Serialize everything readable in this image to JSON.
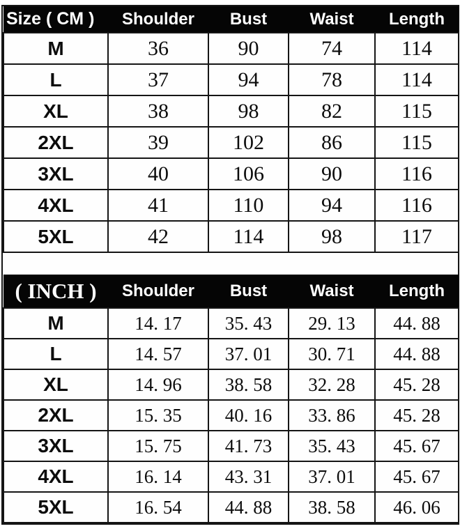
{
  "page": {
    "background": "#ffffff",
    "header_bg": "#050505",
    "header_text_color": "#ffffff",
    "border_color": "#151515"
  },
  "cm_table": {
    "header": [
      "Size ( CM )",
      "Shoulder",
      "Bust",
      "Waist",
      "Length"
    ],
    "rows": [
      [
        "M",
        "36",
        "90",
        "74",
        "114"
      ],
      [
        "L",
        "37",
        "94",
        "78",
        "114"
      ],
      [
        "XL",
        "38",
        "98",
        "82",
        "115"
      ],
      [
        "2XL",
        "39",
        "102",
        "86",
        "115"
      ],
      [
        "3XL",
        "40",
        "106",
        "90",
        "116"
      ],
      [
        "4XL",
        "41",
        "110",
        "94",
        "116"
      ],
      [
        "5XL",
        "42",
        "114",
        "98",
        "117"
      ]
    ]
  },
  "inch_table": {
    "header": [
      "( INCH )",
      "Shoulder",
      "Bust",
      "Waist",
      "Length"
    ],
    "rows": [
      [
        "M",
        "14. 17",
        "35. 43",
        "29. 13",
        "44. 88"
      ],
      [
        "L",
        "14. 57",
        "37. 01",
        "30. 71",
        "44. 88"
      ],
      [
        "XL",
        "14. 96",
        "38. 58",
        "32. 28",
        "45. 28"
      ],
      [
        "2XL",
        "15. 35",
        "40. 16",
        "33. 86",
        "45. 28"
      ],
      [
        "3XL",
        "15. 75",
        "41. 73",
        "35. 43",
        "45. 67"
      ],
      [
        "4XL",
        "16. 14",
        "43. 31",
        "37. 01",
        "45. 67"
      ],
      [
        "5XL",
        "16. 54",
        "44. 88",
        "38. 58",
        "46. 06"
      ]
    ]
  },
  "chart_data": [
    {
      "type": "table",
      "title": "Size ( CM )",
      "unit": "cm",
      "columns": [
        "Size",
        "Shoulder",
        "Bust",
        "Waist",
        "Length"
      ],
      "rows": [
        {
          "size": "M",
          "shoulder": 36,
          "bust": 90,
          "waist": 74,
          "length": 114
        },
        {
          "size": "L",
          "shoulder": 37,
          "bust": 94,
          "waist": 78,
          "length": 114
        },
        {
          "size": "XL",
          "shoulder": 38,
          "bust": 98,
          "waist": 82,
          "length": 115
        },
        {
          "size": "2XL",
          "shoulder": 39,
          "bust": 102,
          "waist": 86,
          "length": 115
        },
        {
          "size": "3XL",
          "shoulder": 40,
          "bust": 106,
          "waist": 90,
          "length": 116
        },
        {
          "size": "4XL",
          "shoulder": 41,
          "bust": 110,
          "waist": 94,
          "length": 116
        },
        {
          "size": "5XL",
          "shoulder": 42,
          "bust": 114,
          "waist": 98,
          "length": 117
        }
      ]
    },
    {
      "type": "table",
      "title": "( INCH )",
      "unit": "inch",
      "columns": [
        "Size",
        "Shoulder",
        "Bust",
        "Waist",
        "Length"
      ],
      "rows": [
        {
          "size": "M",
          "shoulder": 14.17,
          "bust": 35.43,
          "waist": 29.13,
          "length": 44.88
        },
        {
          "size": "L",
          "shoulder": 14.57,
          "bust": 37.01,
          "waist": 30.71,
          "length": 44.88
        },
        {
          "size": "XL",
          "shoulder": 14.96,
          "bust": 38.58,
          "waist": 32.28,
          "length": 45.28
        },
        {
          "size": "2XL",
          "shoulder": 15.35,
          "bust": 40.16,
          "waist": 33.86,
          "length": 45.28
        },
        {
          "size": "3XL",
          "shoulder": 15.75,
          "bust": 41.73,
          "waist": 35.43,
          "length": 45.67
        },
        {
          "size": "4XL",
          "shoulder": 16.14,
          "bust": 43.31,
          "waist": 37.01,
          "length": 45.67
        },
        {
          "size": "5XL",
          "shoulder": 16.54,
          "bust": 44.88,
          "waist": 38.58,
          "length": 46.06
        }
      ]
    }
  ]
}
